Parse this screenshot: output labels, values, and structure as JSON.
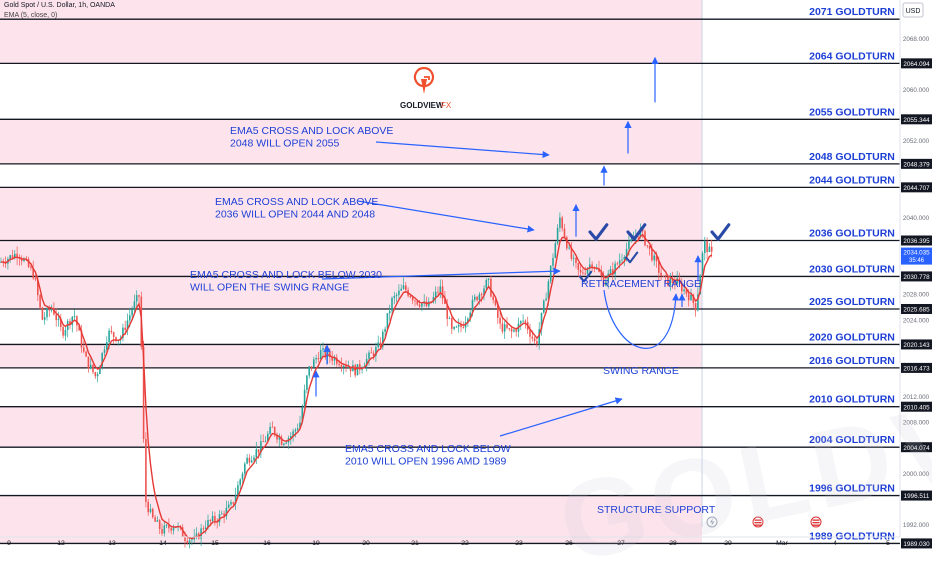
{
  "header": {
    "symbol": "Gold Spot / U.S. Dollar, 1h, OANDA",
    "indicator": "EMA (5, close, 0)"
  },
  "logo": {
    "text": "GOLDVIEW",
    "suffix": "FX"
  },
  "watermark": "GOLDVIEW",
  "currency": "USD",
  "colors": {
    "zone_pink": "#fde4ec",
    "level_line": "#131722",
    "annotation_blue": "#2962ff",
    "label_blue": "#1e3fd6",
    "candle_up": "#26a69a",
    "candle_down": "#ef5350",
    "ema": "#e53935",
    "logo_red": "#f0502d",
    "price_badge": "#2962ff"
  },
  "chart_data": {
    "type": "candlestick",
    "y_axis": {
      "min": 1988,
      "max": 2074,
      "ticks": [
        1992,
        1996,
        2000,
        2004,
        2008,
        2012,
        2016,
        2020,
        2024,
        2028,
        2032,
        2036,
        2040,
        2044,
        2048,
        2052,
        2056,
        2060,
        2064,
        2068
      ]
    },
    "x_axis": {
      "labels": [
        "9",
        "12",
        "13",
        "14",
        "15",
        "16",
        "19",
        "20",
        "21",
        "22",
        "23",
        "26",
        "27",
        "28",
        "29",
        "Mar",
        "4",
        "5"
      ]
    },
    "levels": [
      {
        "value": 2071,
        "label": "2071 GOLDTURN",
        "price": ""
      },
      {
        "value": 2064.094,
        "label": "2064 GOLDTURN",
        "price": "2064.094"
      },
      {
        "value": 2055.344,
        "label": "2055 GOLDTURN",
        "price": "2055.344"
      },
      {
        "value": 2048.379,
        "label": "2048 GOLDTURN",
        "price": "2048.379"
      },
      {
        "value": 2044.707,
        "label": "2044 GOLDTURN",
        "price": "2044.707"
      },
      {
        "value": 2036.395,
        "label": "2036 GOLDTURN",
        "price": "2036.395"
      },
      {
        "value": 2030.778,
        "label": "2030 GOLDTURN",
        "price": "2030.778"
      },
      {
        "value": 2025.685,
        "label": "2025 GOLDTURN",
        "price": "2025.685"
      },
      {
        "value": 2020.143,
        "label": "2020 GOLDTURN",
        "price": "2020.143"
      },
      {
        "value": 2016.473,
        "label": "2016 GOLDTURN",
        "price": "2016.473"
      },
      {
        "value": 2010.405,
        "label": "2010 GOLDTURN",
        "price": "2010.405"
      },
      {
        "value": 2004.074,
        "label": "2004 GOLDTURN",
        "price": "2004.074"
      },
      {
        "value": 1996.511,
        "label": "1996 GOLDTURN",
        "price": "1996.511"
      },
      {
        "value": 1989.03,
        "label": "1989 GOLDTURN",
        "price": "1989.030"
      }
    ],
    "zones": [
      [
        2064.094,
        2074
      ],
      [
        2048.379,
        2055.344
      ],
      [
        2025.685,
        2044.707
      ],
      [
        2016.473,
        2020.143
      ],
      [
        2004.074,
        2010.405
      ],
      [
        1989.03,
        1996.511
      ]
    ],
    "current_price": {
      "value": 2034.035,
      "label": "2034.035",
      "countdown": "35:46"
    },
    "annotations": [
      {
        "lines": [
          "EMA5 CROSS AND LOCK ABOVE",
          "2048 WILL OPEN 2055"
        ]
      },
      {
        "lines": [
          "EMA5 CROSS AND LOCK ABOVE",
          "2036 WILL OPEN 2044 AND 2048"
        ]
      },
      {
        "lines": [
          "EMA5 CROSS AND LOCK BELOW 2030",
          "WILL OPEN THE SWING RANGE"
        ]
      },
      {
        "lines": [
          "EMA5 CROSS AND LOCK BELOW",
          "2010 WILL OPEN 1996 AMD 1989"
        ]
      },
      {
        "lines": [
          "RETRACEMENT RANGE"
        ]
      },
      {
        "lines": [
          "SWING RANGE"
        ]
      },
      {
        "lines": [
          "STRUCTURE SUPPORT"
        ]
      }
    ],
    "path": [
      [
        0,
        2033
      ],
      [
        18,
        2034.5
      ],
      [
        34,
        2031
      ],
      [
        42,
        2024
      ],
      [
        52,
        2026
      ],
      [
        62,
        2022
      ],
      [
        74,
        2025
      ],
      [
        85,
        2018
      ],
      [
        96,
        2015
      ],
      [
        108,
        2022
      ],
      [
        120,
        2021
      ],
      [
        133,
        2026
      ],
      [
        140,
        2028
      ],
      [
        145,
        1996
      ],
      [
        152,
        1993
      ],
      [
        162,
        1991
      ],
      [
        175,
        1992
      ],
      [
        185,
        1990
      ],
      [
        195,
        1989.5
      ],
      [
        205,
        1992
      ],
      [
        218,
        1993
      ],
      [
        232,
        1995
      ],
      [
        246,
        2002
      ],
      [
        260,
        2004
      ],
      [
        272,
        2007
      ],
      [
        282,
        2005
      ],
      [
        292,
        2006
      ],
      [
        300,
        2008
      ],
      [
        308,
        2016
      ],
      [
        320,
        2019
      ],
      [
        334,
        2018
      ],
      [
        346,
        2017
      ],
      [
        356,
        2016
      ],
      [
        368,
        2018
      ],
      [
        380,
        2020
      ],
      [
        392,
        2027
      ],
      [
        404,
        2029
      ],
      [
        416,
        2027
      ],
      [
        428,
        2026
      ],
      [
        440,
        2029
      ],
      [
        452,
        2022
      ],
      [
        462,
        2023
      ],
      [
        474,
        2027
      ],
      [
        488,
        2030
      ],
      [
        500,
        2023
      ],
      [
        512,
        2022
      ],
      [
        524,
        2024
      ],
      [
        536,
        2020
      ],
      [
        546,
        2028
      ],
      [
        553,
        2034
      ],
      [
        560,
        2040
      ],
      [
        570,
        2034
      ],
      [
        580,
        2031
      ],
      [
        592,
        2033
      ],
      [
        604,
        2030
      ],
      [
        614,
        2032
      ],
      [
        626,
        2035
      ],
      [
        640,
        2038
      ],
      [
        652,
        2034
      ],
      [
        664,
        2030
      ],
      [
        676,
        2030
      ],
      [
        688,
        2028
      ],
      [
        696,
        2026
      ],
      [
        704,
        2036
      ],
      [
        712,
        2034
      ]
    ],
    "up_arrows": [
      {
        "x": 655,
        "from": 2058,
        "to": 2065
      },
      {
        "x": 628,
        "from": 2050,
        "to": 2055
      },
      {
        "x": 604,
        "from": 2045,
        "to": 2048
      },
      {
        "x": 576,
        "from": 2037,
        "to": 2042
      },
      {
        "x": 698,
        "from": 2030,
        "to": 2034
      },
      {
        "x": 682,
        "from": 2026,
        "to": 2028
      },
      {
        "x": 327,
        "from": 2017,
        "to": 2020
      },
      {
        "x": 316,
        "from": 2012,
        "to": 2016
      }
    ],
    "checkmarks": [
      {
        "x": 596,
        "y": 2036.6
      },
      {
        "x": 634,
        "y": 2036.6
      },
      {
        "x": 718,
        "y": 2036.6
      },
      {
        "x": 630,
        "y": 2033
      },
      {
        "x": 584,
        "y": 2030
      }
    ]
  }
}
